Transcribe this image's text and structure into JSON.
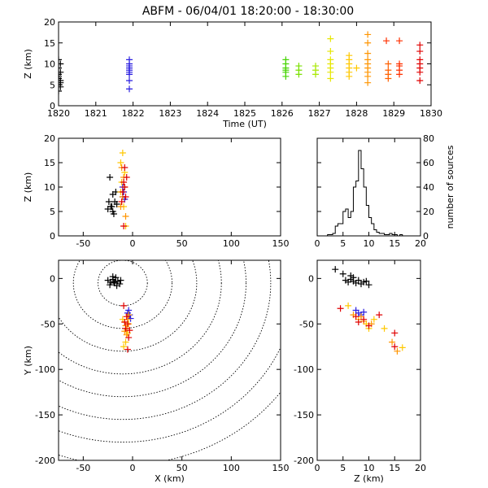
{
  "title": "ABFM - 06/04/01 18:20:00 - 18:30:00",
  "chart_data": [
    {
      "id": "time_height",
      "type": "scatter",
      "xlabel": "Time (UT)",
      "ylabel": "Z (km)",
      "xlim": [
        1820,
        1830
      ],
      "ylim": [
        0,
        20
      ],
      "xticks": [
        1820,
        1821,
        1822,
        1823,
        1824,
        1825,
        1826,
        1827,
        1828,
        1829,
        1830
      ],
      "yticks": [
        0,
        5,
        10,
        15,
        20
      ],
      "marker": "+",
      "series": [
        {
          "color": "#000000",
          "points": [
            [
              1820.0,
              3.5
            ],
            [
              1820.0,
              5
            ],
            [
              1820.05,
              6
            ],
            [
              1820.0,
              7
            ],
            [
              1820.05,
              8
            ],
            [
              1820.0,
              9
            ],
            [
              1820.05,
              10
            ],
            [
              1820.0,
              11
            ],
            [
              1820.05,
              4.5
            ],
            [
              1820.0,
              6.5
            ],
            [
              1820.05,
              5.5
            ],
            [
              1820.0,
              7.5
            ]
          ]
        },
        {
          "color": "#2a1ee0",
          "points": [
            [
              1821.9,
              4
            ],
            [
              1821.9,
              6
            ],
            [
              1821.9,
              7.5
            ],
            [
              1821.9,
              8
            ],
            [
              1821.9,
              8.5
            ],
            [
              1821.9,
              9
            ],
            [
              1821.9,
              9.5
            ],
            [
              1821.9,
              10
            ],
            [
              1821.9,
              11
            ]
          ]
        },
        {
          "color": "#44d400",
          "points": [
            [
              1826.1,
              7
            ],
            [
              1826.1,
              8
            ],
            [
              1826.1,
              8.5
            ],
            [
              1826.1,
              9
            ],
            [
              1826.1,
              10
            ],
            [
              1826.1,
              11
            ]
          ]
        },
        {
          "color": "#7ae000",
          "points": [
            [
              1826.45,
              7.5
            ],
            [
              1826.45,
              8.5
            ],
            [
              1826.45,
              9.5
            ]
          ]
        },
        {
          "color": "#a8e800",
          "points": [
            [
              1826.9,
              7.5
            ],
            [
              1826.9,
              8.5
            ],
            [
              1826.9,
              9.5
            ]
          ]
        },
        {
          "color": "#e6e600",
          "points": [
            [
              1827.3,
              6.5
            ],
            [
              1827.3,
              8
            ],
            [
              1827.3,
              9
            ],
            [
              1827.3,
              10
            ],
            [
              1827.3,
              11
            ],
            [
              1827.3,
              13
            ],
            [
              1827.3,
              16
            ]
          ]
        },
        {
          "color": "#ffc800",
          "points": [
            [
              1827.8,
              7
            ],
            [
              1827.8,
              8
            ],
            [
              1827.8,
              9
            ],
            [
              1827.8,
              10
            ],
            [
              1827.8,
              11
            ],
            [
              1827.8,
              12
            ],
            [
              1828.0,
              9
            ]
          ]
        },
        {
          "color": "#ff9500",
          "points": [
            [
              1828.3,
              5.5
            ],
            [
              1828.3,
              7
            ],
            [
              1828.3,
              8
            ],
            [
              1828.3,
              9
            ],
            [
              1828.3,
              10
            ],
            [
              1828.3,
              11
            ],
            [
              1828.3,
              12.5
            ],
            [
              1828.3,
              15
            ],
            [
              1828.3,
              17
            ]
          ]
        },
        {
          "color": "#ff6000",
          "points": [
            [
              1828.85,
              6.5
            ],
            [
              1828.85,
              7.5
            ],
            [
              1828.85,
              8.5
            ],
            [
              1828.85,
              10
            ]
          ]
        },
        {
          "color": "#ff3000",
          "points": [
            [
              1829.15,
              7.5
            ],
            [
              1829.15,
              8.5
            ],
            [
              1829.15,
              9.5
            ],
            [
              1829.15,
              10
            ],
            [
              1829.15,
              15.5
            ],
            [
              1828.8,
              15.5
            ]
          ]
        },
        {
          "color": "#e00000",
          "points": [
            [
              1829.7,
              6
            ],
            [
              1829.7,
              8
            ],
            [
              1829.7,
              9
            ],
            [
              1829.7,
              10
            ],
            [
              1829.7,
              11
            ],
            [
              1829.7,
              13
            ],
            [
              1829.7,
              14.5
            ]
          ]
        }
      ]
    },
    {
      "id": "x_z",
      "type": "scatter",
      "xlabel": "",
      "ylabel": "Z (km)",
      "xlim": [
        -75,
        150
      ],
      "ylim": [
        0,
        20
      ],
      "xticks": [
        -50,
        0,
        50,
        100,
        150
      ],
      "yticks": [
        0,
        5,
        10,
        15,
        20
      ],
      "marker": "+",
      "series": [
        {
          "color": "#000000",
          "points": [
            [
              -25,
              5.5
            ],
            [
              -22,
              6
            ],
            [
              -20,
              5
            ],
            [
              -18,
              7
            ],
            [
              -20,
              8.5
            ],
            [
              -16,
              6.5
            ],
            [
              -23,
              12
            ],
            [
              -21,
              6
            ],
            [
              -19,
              4.5
            ],
            [
              -17,
              9
            ],
            [
              -24,
              7
            ]
          ]
        },
        {
          "color": "#2a1ee0",
          "points": [
            [
              -10,
              8
            ],
            [
              -9,
              9
            ],
            [
              -8,
              7.5
            ],
            [
              -10,
              10
            ]
          ]
        },
        {
          "color": "#ffc800",
          "points": [
            [
              -12,
              15
            ],
            [
              -10,
              17
            ],
            [
              -8,
              13
            ],
            [
              -11,
              11
            ],
            [
              -9,
              6
            ],
            [
              -7,
              2
            ],
            [
              -12,
              9
            ]
          ]
        },
        {
          "color": "#ff9500",
          "points": [
            [
              -11,
              14
            ],
            [
              -9,
              12
            ],
            [
              -8,
              10
            ],
            [
              -10,
              8
            ],
            [
              -12,
              6
            ],
            [
              -7,
              4
            ]
          ]
        },
        {
          "color": "#e00000",
          "points": [
            [
              -10,
              9
            ],
            [
              -8,
              10
            ],
            [
              -9,
              11
            ],
            [
              -7,
              8
            ],
            [
              -6,
              12
            ],
            [
              -11,
              7
            ],
            [
              -8,
              14
            ],
            [
              -9,
              2
            ]
          ]
        }
      ]
    },
    {
      "id": "z_histogram",
      "type": "bar",
      "xlabel": "",
      "ylabel": "number of sources",
      "xlim": [
        0,
        20
      ],
      "ylim": [
        0,
        80
      ],
      "xticks": [
        0,
        5,
        10,
        15,
        20
      ],
      "yticks": [
        0,
        20,
        40,
        60,
        80
      ],
      "bin_width": 0.5,
      "bin_starts": [
        2,
        2.5,
        3,
        3.5,
        4,
        4.5,
        5,
        5.5,
        6,
        6.5,
        7,
        7.5,
        8,
        8.5,
        9,
        9.5,
        10,
        10.5,
        11,
        11.5,
        12,
        12.5,
        13,
        13.5,
        14,
        14.5,
        15,
        15.5,
        16,
        16.5,
        17
      ],
      "values": [
        1,
        1,
        2,
        8,
        10,
        10,
        20,
        22,
        15,
        20,
        40,
        45,
        70,
        55,
        40,
        25,
        15,
        10,
        5,
        3,
        2,
        2,
        1,
        1,
        2,
        1,
        1,
        0,
        1,
        0,
        0
      ]
    },
    {
      "id": "x_y_plan",
      "type": "scatter",
      "xlabel": "X (km)",
      "ylabel": "Y (km)",
      "xlim": [
        -75,
        150
      ],
      "ylim": [
        -200,
        20
      ],
      "xticks": [
        -50,
        0,
        50,
        100,
        150
      ],
      "yticks": [
        -200,
        -150,
        -100,
        -50,
        0
      ],
      "range_rings_km": [
        25,
        50,
        75,
        100,
        125,
        150,
        175,
        200
      ],
      "ring_center": [
        -10,
        -5
      ],
      "marker": "+",
      "series": [
        {
          "color": "#000000",
          "points": [
            [
              -25,
              -2
            ],
            [
              -22,
              -4
            ],
            [
              -20,
              -1
            ],
            [
              -18,
              -5
            ],
            [
              -15,
              -3
            ],
            [
              -13,
              -6
            ],
            [
              -20,
              2
            ],
            [
              -17,
              1
            ],
            [
              -23,
              -7
            ],
            [
              -16,
              -8
            ],
            [
              -12,
              -2
            ],
            [
              -19,
              -4
            ]
          ]
        },
        {
          "color": "#2a1ee0",
          "points": [
            [
              -3,
              -40
            ],
            [
              -5,
              -38
            ],
            [
              -2,
              -44
            ],
            [
              -4,
              -35
            ]
          ]
        },
        {
          "color": "#ffc800",
          "points": [
            [
              -8,
              -48
            ],
            [
              -6,
              -55
            ],
            [
              -10,
              -45
            ],
            [
              -7,
              -70
            ],
            [
              -9,
              -75
            ],
            [
              -5,
              -60
            ],
            [
              -4,
              -50
            ]
          ]
        },
        {
          "color": "#ff9500",
          "points": [
            [
              -7,
              -52
            ],
            [
              -5,
              -45
            ],
            [
              -8,
              -58
            ],
            [
              -6,
              -62
            ],
            [
              -4,
              -40
            ]
          ]
        },
        {
          "color": "#e00000",
          "points": [
            [
              -9,
              -30
            ],
            [
              -6,
              -42
            ],
            [
              -5,
              -50
            ],
            [
              -7,
              -55
            ],
            [
              -4,
              -65
            ],
            [
              -8,
              -48
            ],
            [
              -5,
              -78
            ],
            [
              -3,
              -57
            ]
          ]
        }
      ]
    },
    {
      "id": "z_y",
      "type": "scatter",
      "xlabel": "Z (km)",
      "ylabel": "",
      "xlim": [
        0,
        20
      ],
      "ylim": [
        -200,
        20
      ],
      "xticks": [
        0,
        5,
        10,
        15,
        20
      ],
      "yticks": [
        -200,
        -150,
        -100,
        -50,
        0
      ],
      "marker": "+",
      "series": [
        {
          "color": "#000000",
          "points": [
            [
              3.5,
              10
            ],
            [
              5,
              5
            ],
            [
              5.5,
              -2
            ],
            [
              6,
              -4
            ],
            [
              6.5,
              -1
            ],
            [
              7,
              -3
            ],
            [
              7.5,
              -5
            ],
            [
              8,
              -2
            ],
            [
              8.5,
              -6
            ],
            [
              9,
              -4
            ],
            [
              9.5,
              -3
            ],
            [
              10,
              -7
            ],
            [
              6.5,
              3
            ],
            [
              7,
              1
            ]
          ]
        },
        {
          "color": "#2a1ee0",
          "points": [
            [
              7.5,
              -35
            ],
            [
              8,
              -38
            ],
            [
              8.5,
              -40
            ],
            [
              9,
              -37
            ]
          ]
        },
        {
          "color": "#ffc800",
          "points": [
            [
              6,
              -30
            ],
            [
              8,
              -45
            ],
            [
              9.5,
              -50
            ],
            [
              10,
              -55
            ],
            [
              11,
              -45
            ],
            [
              13,
              -55
            ],
            [
              16.5,
              -76
            ]
          ]
        },
        {
          "color": "#ff9500",
          "points": [
            [
              7,
              -40
            ],
            [
              8.5,
              -42
            ],
            [
              9,
              -47
            ],
            [
              10.5,
              -50
            ],
            [
              14.5,
              -70
            ],
            [
              15.5,
              -80
            ]
          ]
        },
        {
          "color": "#e00000",
          "points": [
            [
              4.5,
              -33
            ],
            [
              7.5,
              -42
            ],
            [
              8,
              -48
            ],
            [
              9,
              -45
            ],
            [
              10,
              -52
            ],
            [
              12,
              -40
            ],
            [
              15,
              -60
            ],
            [
              15,
              -75
            ]
          ]
        }
      ]
    }
  ]
}
